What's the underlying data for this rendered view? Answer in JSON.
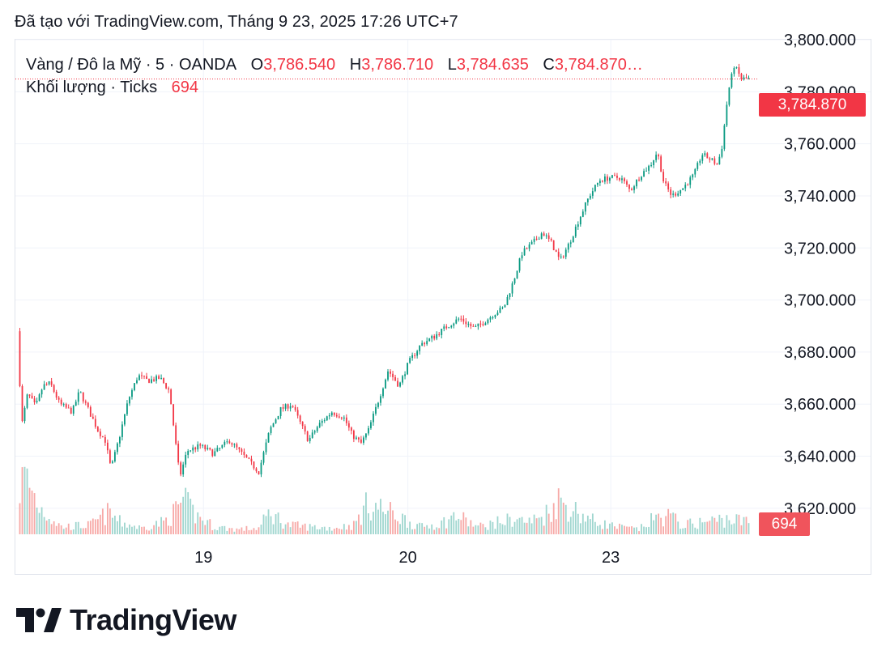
{
  "header": {
    "created_text": "Đã tạo với TradingView.com, Tháng 9 23, 2025 17:26 UTC+7"
  },
  "legend": {
    "symbol": "Vàng / Đô la Mỹ · 5 · OANDA",
    "open_label": "O",
    "open_value": "3,786.540",
    "high_label": "H",
    "high_value": "3,786.710",
    "low_label": "L",
    "low_value": "3,784.635",
    "close_label": "C",
    "close_value": "3,784.870…",
    "volume_label": "Khối lượng · Ticks",
    "volume_value": "694"
  },
  "badges": {
    "last_price": "3,784.870",
    "last_volume": "694"
  },
  "logo": {
    "text": "TradingView"
  },
  "colors": {
    "up": "#089981",
    "down": "#f23645",
    "vol_up": "#9fd6cf",
    "vol_down": "#f7a9a7",
    "grid": "#f0f3fa"
  },
  "chart_data": {
    "type": "candlestick",
    "title": "Vàng / Đô la Mỹ · 5 · OANDA",
    "y_ticks": [
      "3,800.000",
      "3,780.000",
      "3,760.000",
      "3,740.000",
      "3,720.000",
      "3,700.000",
      "3,680.000",
      "3,660.000",
      "3,640.000",
      "3,620.000"
    ],
    "y_tick_values": [
      3800,
      3780,
      3760,
      3740,
      3720,
      3700,
      3680,
      3660,
      3640,
      3620
    ],
    "ylim": [
      3610,
      3800
    ],
    "x_ticks": [
      {
        "label": "19",
        "t": 0.255
      },
      {
        "label": "20",
        "t": 0.532
      },
      {
        "label": "23",
        "t": 0.807
      }
    ],
    "last_price": 3784.87,
    "last_volume": 694,
    "price_path": [
      [
        0.0,
        3688
      ],
      [
        0.006,
        3652
      ],
      [
        0.014,
        3664
      ],
      [
        0.025,
        3659
      ],
      [
        0.035,
        3667
      ],
      [
        0.045,
        3668
      ],
      [
        0.058,
        3660
      ],
      [
        0.075,
        3657
      ],
      [
        0.085,
        3665
      ],
      [
        0.1,
        3656
      ],
      [
        0.11,
        3650
      ],
      [
        0.12,
        3646
      ],
      [
        0.128,
        3635
      ],
      [
        0.14,
        3648
      ],
      [
        0.152,
        3662
      ],
      [
        0.165,
        3671
      ],
      [
        0.178,
        3669
      ],
      [
        0.195,
        3670
      ],
      [
        0.208,
        3665
      ],
      [
        0.215,
        3648
      ],
      [
        0.222,
        3632
      ],
      [
        0.232,
        3642
      ],
      [
        0.25,
        3644
      ],
      [
        0.268,
        3641
      ],
      [
        0.29,
        3646
      ],
      [
        0.31,
        3640
      ],
      [
        0.33,
        3634
      ],
      [
        0.345,
        3650
      ],
      [
        0.36,
        3658
      ],
      [
        0.375,
        3660
      ],
      [
        0.388,
        3652
      ],
      [
        0.398,
        3646
      ],
      [
        0.412,
        3652
      ],
      [
        0.43,
        3657
      ],
      [
        0.446,
        3655
      ],
      [
        0.458,
        3648
      ],
      [
        0.47,
        3645
      ],
      [
        0.48,
        3650
      ],
      [
        0.492,
        3660
      ],
      [
        0.507,
        3673
      ],
      [
        0.522,
        3667
      ],
      [
        0.535,
        3676
      ],
      [
        0.552,
        3683
      ],
      [
        0.57,
        3686
      ],
      [
        0.588,
        3690
      ],
      [
        0.605,
        3693
      ],
      [
        0.625,
        3689
      ],
      [
        0.64,
        3692
      ],
      [
        0.653,
        3695
      ],
      [
        0.665,
        3697
      ],
      [
        0.678,
        3707
      ],
      [
        0.69,
        3718
      ],
      [
        0.705,
        3722
      ],
      [
        0.718,
        3726
      ],
      [
        0.73,
        3722
      ],
      [
        0.742,
        3715
      ],
      [
        0.755,
        3722
      ],
      [
        0.768,
        3731
      ],
      [
        0.782,
        3740
      ],
      [
        0.796,
        3746
      ],
      [
        0.81,
        3747
      ],
      [
        0.825,
        3747
      ],
      [
        0.838,
        3742
      ],
      [
        0.852,
        3748
      ],
      [
        0.866,
        3752
      ],
      [
        0.875,
        3757
      ],
      [
        0.884,
        3745
      ],
      [
        0.895,
        3740
      ],
      [
        0.91,
        3743
      ],
      [
        0.925,
        3748
      ],
      [
        0.936,
        3756
      ],
      [
        0.948,
        3754
      ],
      [
        0.957,
        3752
      ],
      [
        0.963,
        3758
      ],
      [
        0.972,
        3780
      ],
      [
        0.98,
        3790
      ],
      [
        0.99,
        3785
      ],
      [
        1.0,
        3785
      ]
    ],
    "volume_path": [
      [
        0.0,
        0.65
      ],
      [
        0.01,
        0.95
      ],
      [
        0.03,
        0.45
      ],
      [
        0.06,
        0.12
      ],
      [
        0.1,
        0.15
      ],
      [
        0.125,
        0.35
      ],
      [
        0.14,
        0.2
      ],
      [
        0.17,
        0.1
      ],
      [
        0.2,
        0.2
      ],
      [
        0.215,
        0.35
      ],
      [
        0.225,
        0.55
      ],
      [
        0.245,
        0.3
      ],
      [
        0.27,
        0.12
      ],
      [
        0.3,
        0.08
      ],
      [
        0.33,
        0.1
      ],
      [
        0.345,
        0.35
      ],
      [
        0.37,
        0.15
      ],
      [
        0.4,
        0.12
      ],
      [
        0.43,
        0.1
      ],
      [
        0.46,
        0.15
      ],
      [
        0.48,
        0.5
      ],
      [
        0.5,
        0.4
      ],
      [
        0.52,
        0.3
      ],
      [
        0.55,
        0.12
      ],
      [
        0.58,
        0.18
      ],
      [
        0.6,
        0.3
      ],
      [
        0.63,
        0.12
      ],
      [
        0.66,
        0.2
      ],
      [
        0.68,
        0.25
      ],
      [
        0.7,
        0.2
      ],
      [
        0.72,
        0.3
      ],
      [
        0.74,
        0.55
      ],
      [
        0.76,
        0.4
      ],
      [
        0.79,
        0.2
      ],
      [
        0.82,
        0.12
      ],
      [
        0.85,
        0.08
      ],
      [
        0.87,
        0.25
      ],
      [
        0.89,
        0.3
      ],
      [
        0.91,
        0.15
      ],
      [
        0.94,
        0.2
      ],
      [
        0.97,
        0.25
      ],
      [
        1.0,
        0.2
      ]
    ]
  }
}
